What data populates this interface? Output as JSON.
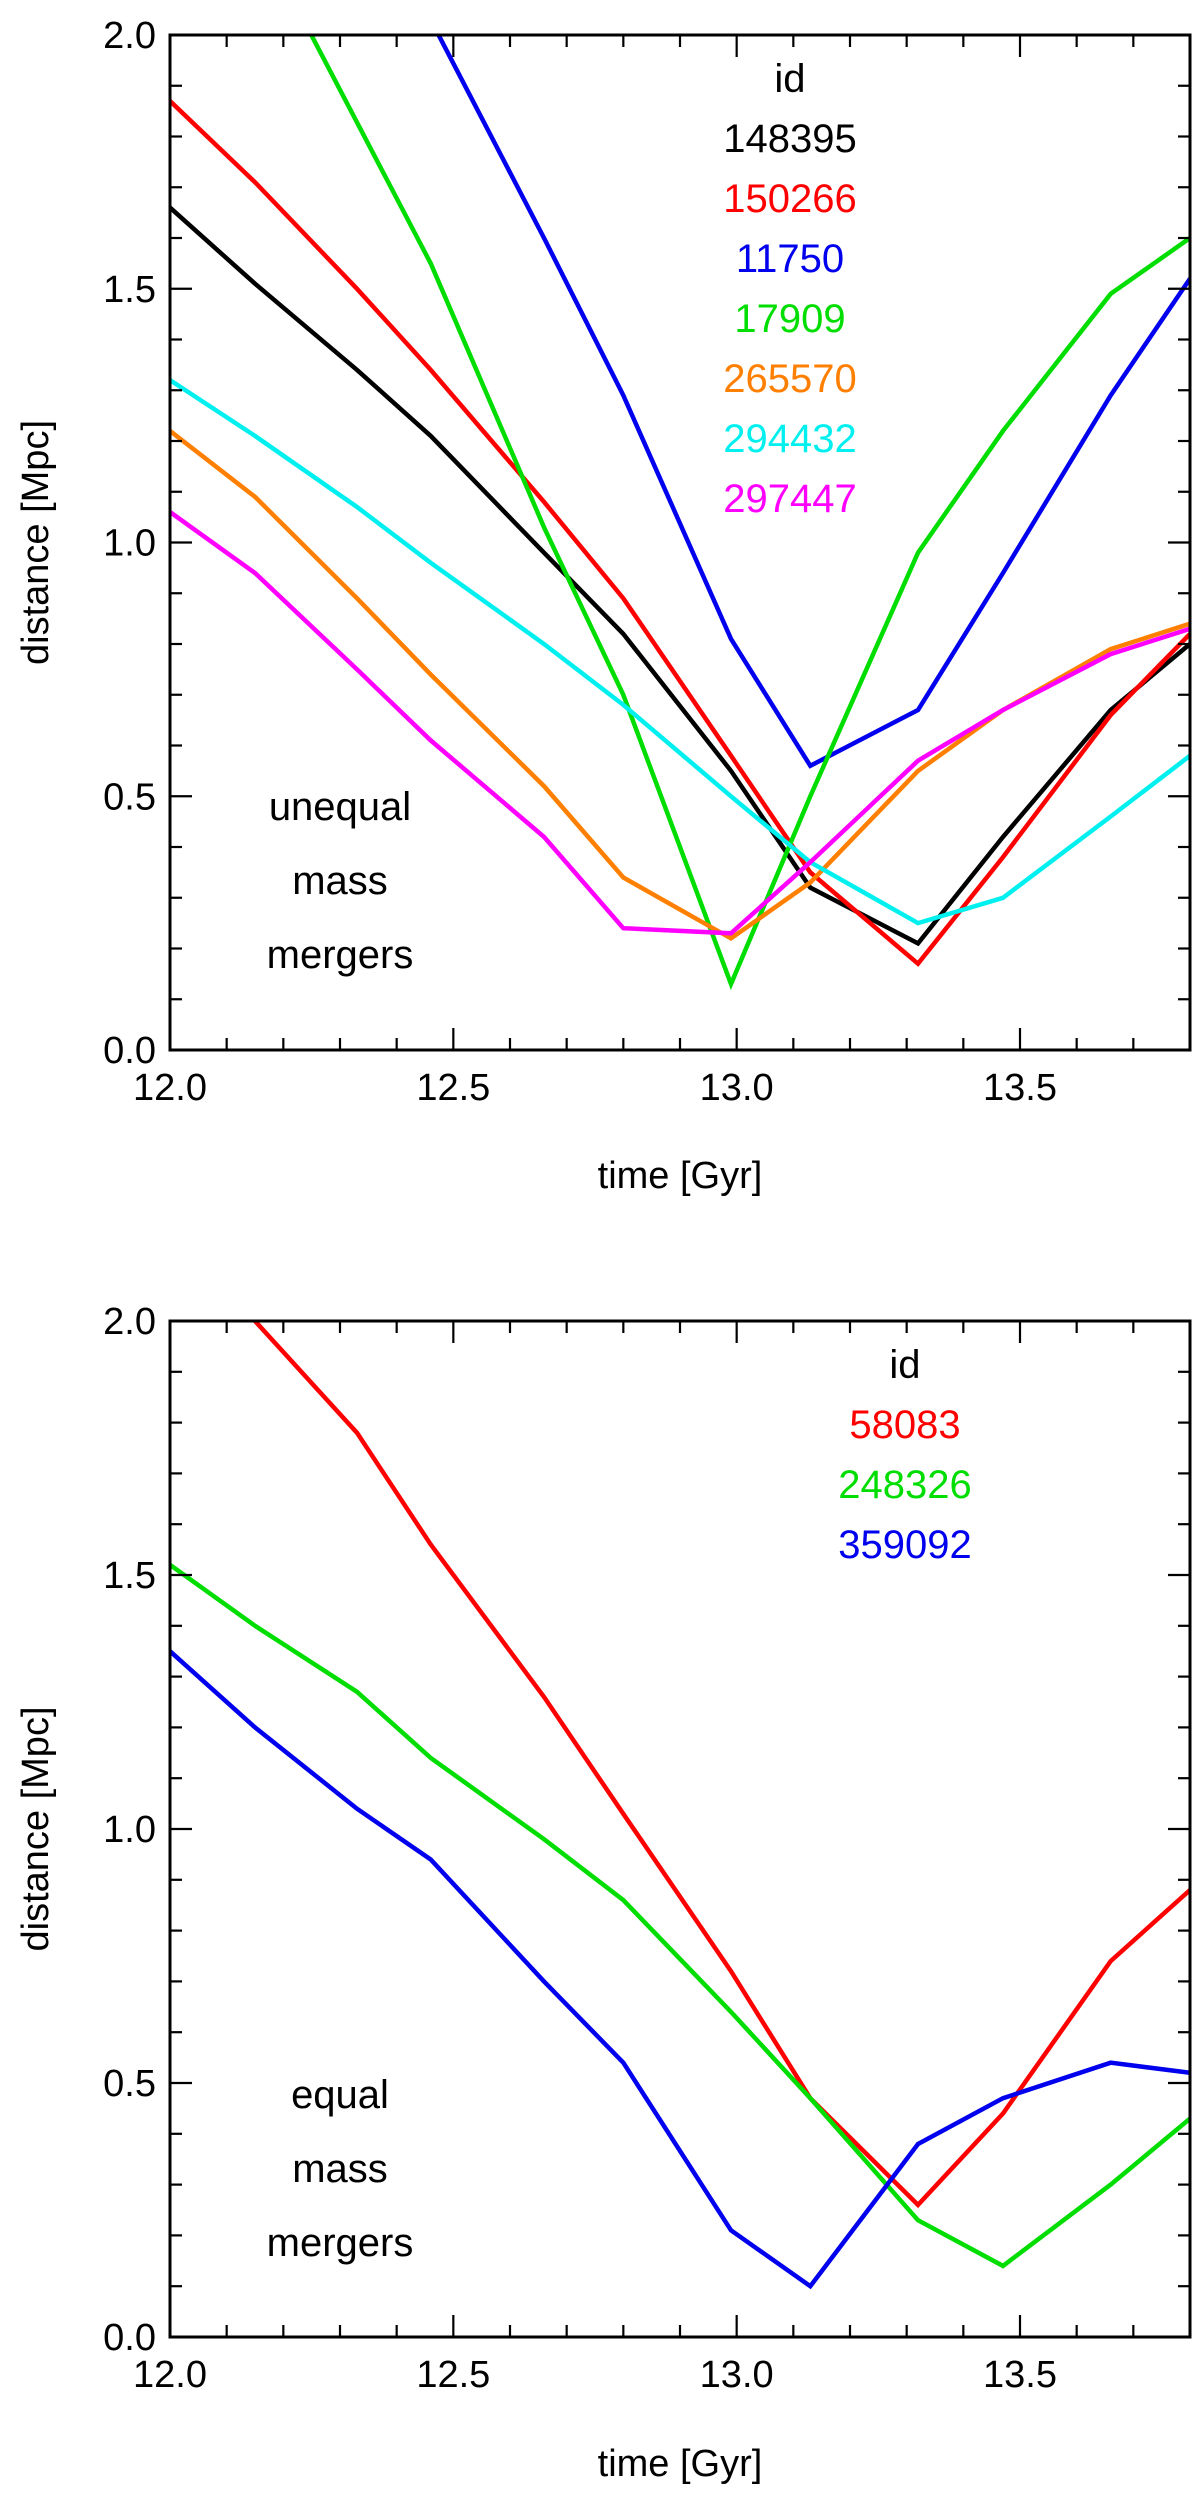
{
  "chart_data": [
    {
      "type": "line",
      "title": "",
      "xlabel": "time [Gyr]",
      "ylabel": "distance [Mpc]",
      "xlim": [
        12.0,
        13.8
      ],
      "ylim": [
        0.0,
        2.0
      ],
      "x_ticks": [
        "12.0",
        "12.5",
        "13.0",
        "13.5"
      ],
      "y_ticks": [
        "0.0",
        "0.5",
        "1.0",
        "1.5",
        "2.0"
      ],
      "legend_title": "id",
      "annotation": [
        "unequal",
        "mass",
        "mergers"
      ],
      "series": [
        {
          "name": "148395",
          "color": "#000000",
          "x": [
            12.0,
            12.15,
            12.33,
            12.46,
            12.66,
            12.8,
            12.99,
            13.13,
            13.32,
            13.47,
            13.66,
            13.8
          ],
          "values": [
            1.66,
            1.51,
            1.34,
            1.21,
            0.98,
            0.82,
            0.55,
            0.32,
            0.21,
            0.42,
            0.67,
            0.8
          ]
        },
        {
          "name": "150266",
          "color": "#ff0000",
          "x": [
            12.0,
            12.15,
            12.33,
            12.46,
            12.66,
            12.8,
            12.99,
            13.13,
            13.32,
            13.47,
            13.66,
            13.8
          ],
          "values": [
            1.87,
            1.71,
            1.5,
            1.34,
            1.08,
            0.89,
            0.58,
            0.35,
            0.17,
            0.38,
            0.66,
            0.82
          ]
        },
        {
          "name": "11750",
          "color": "#0000ee",
          "x": [
            12.46,
            12.66,
            12.8,
            12.99,
            13.13,
            13.32,
            13.47,
            13.66,
            13.8
          ],
          "values": [
            2.03,
            1.6,
            1.29,
            0.81,
            0.56,
            0.67,
            0.94,
            1.29,
            1.52
          ]
        },
        {
          "name": "17909",
          "color": "#00dd00",
          "x": [
            12.24,
            12.46,
            12.66,
            12.8,
            12.99,
            13.13,
            13.32,
            13.47,
            13.66,
            13.8
          ],
          "values": [
            2.02,
            1.55,
            1.03,
            0.7,
            0.13,
            0.5,
            0.98,
            1.22,
            1.49,
            1.6
          ]
        },
        {
          "name": "265570",
          "color": "#ff7f00",
          "x": [
            12.0,
            12.15,
            12.33,
            12.46,
            12.66,
            12.8,
            12.99,
            13.13,
            13.32,
            13.47,
            13.66,
            13.8
          ],
          "values": [
            1.22,
            1.09,
            0.89,
            0.74,
            0.52,
            0.34,
            0.22,
            0.33,
            0.55,
            0.67,
            0.79,
            0.84
          ]
        },
        {
          "name": "294432",
          "color": "#00f0f0",
          "x": [
            12.0,
            12.15,
            12.33,
            12.46,
            12.66,
            12.8,
            12.99,
            13.13,
            13.32,
            13.47,
            13.66,
            13.8
          ],
          "values": [
            1.32,
            1.21,
            1.07,
            0.96,
            0.8,
            0.68,
            0.5,
            0.37,
            0.25,
            0.3,
            0.46,
            0.58
          ]
        },
        {
          "name": "297447",
          "color": "#ff00ff",
          "x": [
            12.0,
            12.15,
            12.33,
            12.46,
            12.66,
            12.8,
            12.99,
            13.13,
            13.32,
            13.47,
            13.66,
            13.8
          ],
          "values": [
            1.06,
            0.94,
            0.75,
            0.61,
            0.42,
            0.24,
            0.23,
            0.37,
            0.57,
            0.67,
            0.78,
            0.83
          ]
        }
      ]
    },
    {
      "type": "line",
      "title": "",
      "xlabel": "time [Gyr]",
      "ylabel": "distance [Mpc]",
      "xlim": [
        12.0,
        13.8
      ],
      "ylim": [
        0.0,
        2.0
      ],
      "x_ticks": [
        "12.0",
        "12.5",
        "13.0",
        "13.5"
      ],
      "y_ticks": [
        "0.0",
        "0.5",
        "1.0",
        "1.5",
        "2.0"
      ],
      "legend_title": "id",
      "annotation": [
        "equal",
        "mass",
        "mergers"
      ],
      "series": [
        {
          "name": "58083",
          "color": "#ff0000",
          "x": [
            12.15,
            12.33,
            12.46,
            12.66,
            12.8,
            12.99,
            13.13,
            13.32,
            13.47,
            13.66,
            13.8
          ],
          "values": [
            2.0,
            1.78,
            1.56,
            1.26,
            1.03,
            0.72,
            0.47,
            0.26,
            0.44,
            0.74,
            0.88
          ]
        },
        {
          "name": "248326",
          "color": "#00dd00",
          "x": [
            12.0,
            12.15,
            12.33,
            12.46,
            12.66,
            12.8,
            12.99,
            13.13,
            13.32,
            13.47,
            13.66,
            13.8
          ],
          "values": [
            1.52,
            1.4,
            1.27,
            1.14,
            0.98,
            0.86,
            0.64,
            0.47,
            0.23,
            0.14,
            0.3,
            0.43
          ]
        },
        {
          "name": "359092",
          "color": "#0000ee",
          "x": [
            12.0,
            12.15,
            12.33,
            12.46,
            12.66,
            12.8,
            12.99,
            13.13,
            13.32,
            13.47,
            13.66,
            13.8
          ],
          "values": [
            1.35,
            1.2,
            1.04,
            0.94,
            0.7,
            0.54,
            0.21,
            0.1,
            0.38,
            0.47,
            0.54,
            0.52
          ]
        }
      ]
    }
  ]
}
